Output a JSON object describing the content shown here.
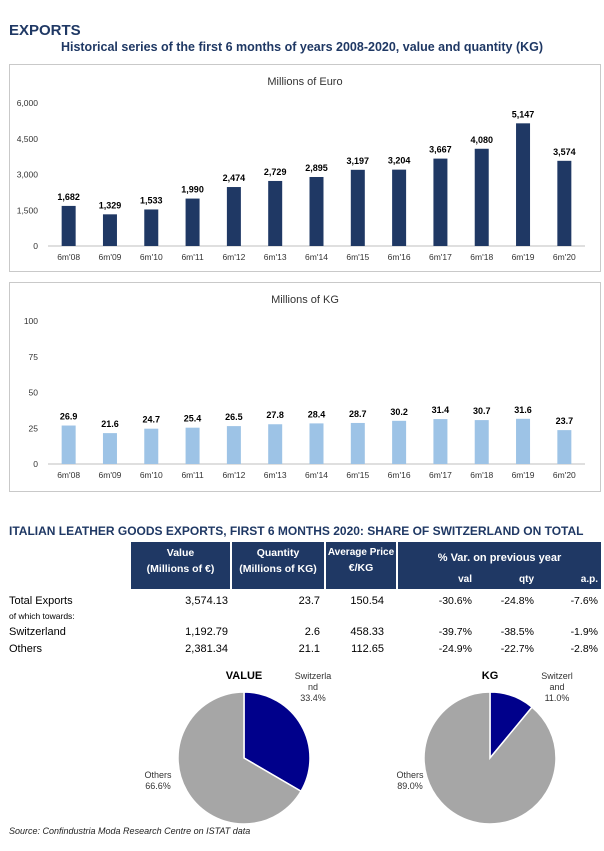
{
  "header": {
    "section": "EXPORTS",
    "title": "Historical series of the first 6 months of years 2008-2020, value and quantity (KG)"
  },
  "chart_data": [
    {
      "type": "bar",
      "title": "Millions of Euro",
      "categories": [
        "6m'08",
        "6m'09",
        "6m'10",
        "6m'11",
        "6m'12",
        "6m'13",
        "6m'14",
        "6m'15",
        "6m'16",
        "6m'17",
        "6m'18",
        "6m'19",
        "6m'20"
      ],
      "values": [
        1682,
        1329,
        1533,
        1990,
        2474,
        2729,
        2895,
        3197,
        3204,
        3667,
        4080,
        5147,
        3574
      ],
      "value_labels": [
        "1,682",
        "1,329",
        "1,533",
        "1,990",
        "2,474",
        "2,729",
        "2,895",
        "3,197",
        "3,204",
        "3,667",
        "4,080",
        "5,147",
        "3,574"
      ],
      "y_ticks": [
        "0",
        "1,500",
        "3,000",
        "4,500",
        "6,000"
      ],
      "ylim": [
        0,
        6000
      ],
      "bar_color": "#1f3864"
    },
    {
      "type": "bar",
      "title": "Millions of KG",
      "categories": [
        "6m'08",
        "6m'09",
        "6m'10",
        "6m'11",
        "6m'12",
        "6m'13",
        "6m'14",
        "6m'15",
        "6m'16",
        "6m'17",
        "6m'18",
        "6m'19",
        "6m'20"
      ],
      "values": [
        26.9,
        21.6,
        24.7,
        25.4,
        26.5,
        27.8,
        28.4,
        28.7,
        30.2,
        31.4,
        30.7,
        31.6,
        23.7
      ],
      "value_labels": [
        "26.9",
        "21.6",
        "24.7",
        "25.4",
        "26.5",
        "27.8",
        "28.4",
        "28.7",
        "30.2",
        "31.4",
        "30.7",
        "31.6",
        "23.7"
      ],
      "y_ticks": [
        "0",
        "25",
        "50",
        "75",
        "100"
      ],
      "ylim": [
        0,
        100
      ],
      "bar_color": "#9dc3e6"
    },
    {
      "type": "table",
      "title": "ITALIAN LEATHER GOODS EXPORTS, FIRST 6 MONTHS 2020: SHARE OF SWITZERLAND ON TOTAL",
      "headers": {
        "value": [
          "Value",
          "(Millions of €)"
        ],
        "quantity": [
          "Quantity",
          "(Millions of KG)"
        ],
        "price": [
          "Average Price",
          "€/KG"
        ],
        "var": "% Var. on previous year",
        "var_sub": [
          "val",
          "qty",
          "a.p."
        ]
      },
      "rows": [
        {
          "label": "Total Exports",
          "value": "3,574.13",
          "quantity": "23.7",
          "price": "150.54",
          "val": "-30.6%",
          "qty": "-24.8%",
          "ap": "-7.6%"
        },
        {
          "label": "Switzerland",
          "value": "1,192.79",
          "quantity": "2.6",
          "price": "458.33",
          "val": "-39.7%",
          "qty": "-38.5%",
          "ap": "-1.9%"
        },
        {
          "label": "Others",
          "value": "2,381.34",
          "quantity": "21.1",
          "price": "112.65",
          "val": "-24.9%",
          "qty": "-22.7%",
          "ap": "-2.8%"
        }
      ],
      "sub_label": "of which towards:"
    },
    {
      "type": "pie",
      "title": "VALUE",
      "slices": [
        {
          "name": "Switzerland",
          "value": 33.4,
          "label_lines": [
            "Switzerla",
            "nd",
            "33.4%"
          ],
          "color": "#00008b"
        },
        {
          "name": "Others",
          "value": 66.6,
          "label_lines": [
            "Others",
            "66.6%"
          ],
          "color": "#a6a6a6"
        }
      ]
    },
    {
      "type": "pie",
      "title": "KG",
      "slices": [
        {
          "name": "Switzerland",
          "value": 11.0,
          "label_lines": [
            "Switzerl",
            "and",
            "11.0%"
          ],
          "color": "#00008b"
        },
        {
          "name": "Others",
          "value": 89.0,
          "label_lines": [
            "Others",
            "89.0%"
          ],
          "color": "#a6a6a6"
        }
      ]
    }
  ],
  "source": "Source: Confindustria Moda Research Centre on ISTAT data"
}
